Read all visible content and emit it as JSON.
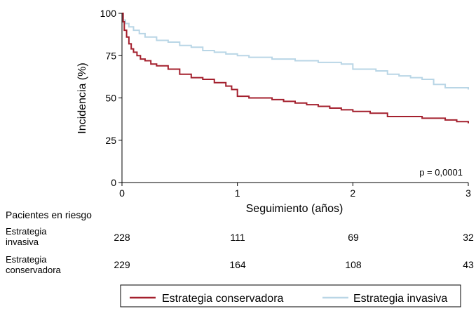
{
  "chart_data": {
    "type": "line",
    "title": "",
    "xlabel": "Seguimiento (años)",
    "ylabel": "Incidencia (%)",
    "xlim": [
      0,
      3
    ],
    "ylim": [
      0,
      100
    ],
    "x_ticks": [
      "0",
      "1",
      "2",
      "3"
    ],
    "y_ticks": [
      "0",
      "25",
      "50",
      "75",
      "100"
    ],
    "grid": false,
    "legend_position": "bottom",
    "annotation": "p = 0,0001",
    "series": [
      {
        "name": "Estrategia conservadora",
        "color": "#a4202e",
        "x": [
          0,
          0.01,
          0.02,
          0.04,
          0.06,
          0.08,
          0.1,
          0.13,
          0.16,
          0.2,
          0.25,
          0.3,
          0.4,
          0.5,
          0.6,
          0.7,
          0.8,
          0.9,
          0.95,
          1.0,
          1.1,
          1.2,
          1.3,
          1.4,
          1.5,
          1.6,
          1.7,
          1.8,
          1.9,
          2.0,
          2.1,
          2.15,
          2.3,
          2.4,
          2.5,
          2.6,
          2.7,
          2.8,
          2.9,
          3.0
        ],
        "y": [
          100,
          95,
          90,
          86,
          82,
          79,
          77,
          75,
          73,
          72,
          70,
          69,
          67,
          64,
          62,
          61,
          59,
          57,
          55,
          51,
          50,
          50,
          49,
          48,
          47,
          46,
          45,
          44,
          43,
          42,
          42,
          41,
          39,
          39,
          39,
          38,
          38,
          37,
          36,
          35
        ]
      },
      {
        "name": "Estrategia invasiva",
        "color": "#b9d6e6",
        "x": [
          0,
          0.01,
          0.03,
          0.06,
          0.1,
          0.15,
          0.2,
          0.3,
          0.4,
          0.5,
          0.6,
          0.7,
          0.8,
          0.9,
          1.0,
          1.1,
          1.2,
          1.3,
          1.4,
          1.5,
          1.6,
          1.7,
          1.8,
          1.9,
          2.0,
          2.1,
          2.2,
          2.3,
          2.4,
          2.5,
          2.6,
          2.7,
          2.8,
          2.9,
          3.0
        ],
        "y": [
          100,
          96,
          94,
          92,
          90,
          88,
          86,
          84,
          83,
          81,
          80,
          78,
          77,
          76,
          75,
          74,
          74,
          73,
          73,
          72,
          72,
          71,
          71,
          70,
          67,
          67,
          66,
          64,
          63,
          62,
          61,
          58,
          56,
          56,
          55
        ]
      }
    ],
    "risk_table": {
      "title": "Pacientes en riesgo",
      "rows": [
        {
          "label_line1": "Estrategia",
          "label_line2": "invasiva",
          "values": [
            "228",
            "111",
            "69",
            "32"
          ]
        },
        {
          "label_line1": "Estrategia",
          "label_line2": "conservadora",
          "values": [
            "229",
            "164",
            "108",
            "43"
          ]
        }
      ]
    }
  }
}
